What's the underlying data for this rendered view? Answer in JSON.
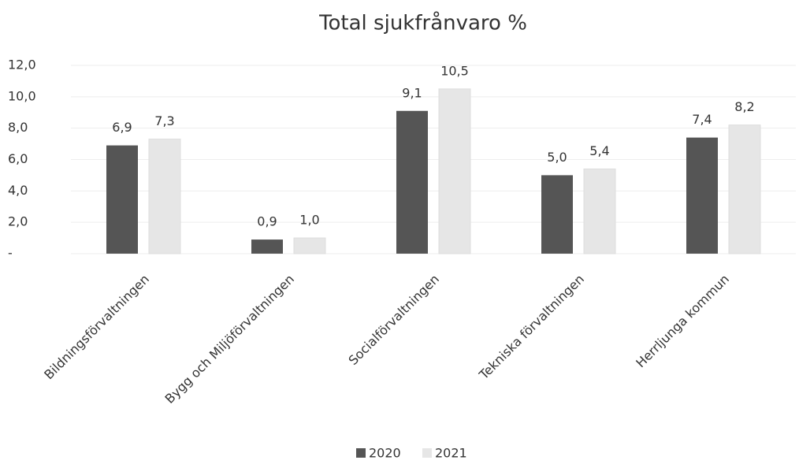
{
  "chart_data": {
    "type": "bar",
    "title": "Total sjukfrånvaro %",
    "categories": [
      "Bildningsförvaltningen",
      "Bygg och Miljöförvaltningen",
      "Socialförvaltningen",
      "Tekniska förvaltningen",
      "Herrljunga kommun"
    ],
    "series": [
      {
        "name": "2020",
        "color": "#555555",
        "values": [
          6.9,
          0.9,
          9.1,
          5.0,
          7.4
        ],
        "value_labels": [
          "6,9",
          "0,9",
          "9,1",
          "5,0",
          "7,4"
        ]
      },
      {
        "name": "2021",
        "color": "#e6e6e6",
        "values": [
          7.3,
          1.0,
          10.5,
          5.4,
          8.2
        ],
        "value_labels": [
          "7,3",
          "1,0",
          "10,5",
          "5,4",
          "8,2"
        ]
      }
    ],
    "ylim": [
      0,
      12
    ],
    "yticks": [
      {
        "value": 0,
        "label": "-"
      },
      {
        "value": 2,
        "label": "2,0"
      },
      {
        "value": 4,
        "label": "4,0"
      },
      {
        "value": 6,
        "label": "6,0"
      },
      {
        "value": 8,
        "label": "8,0"
      },
      {
        "value": 10,
        "label": "10,0"
      },
      {
        "value": 12,
        "label": "12,0"
      }
    ],
    "grid": true
  }
}
